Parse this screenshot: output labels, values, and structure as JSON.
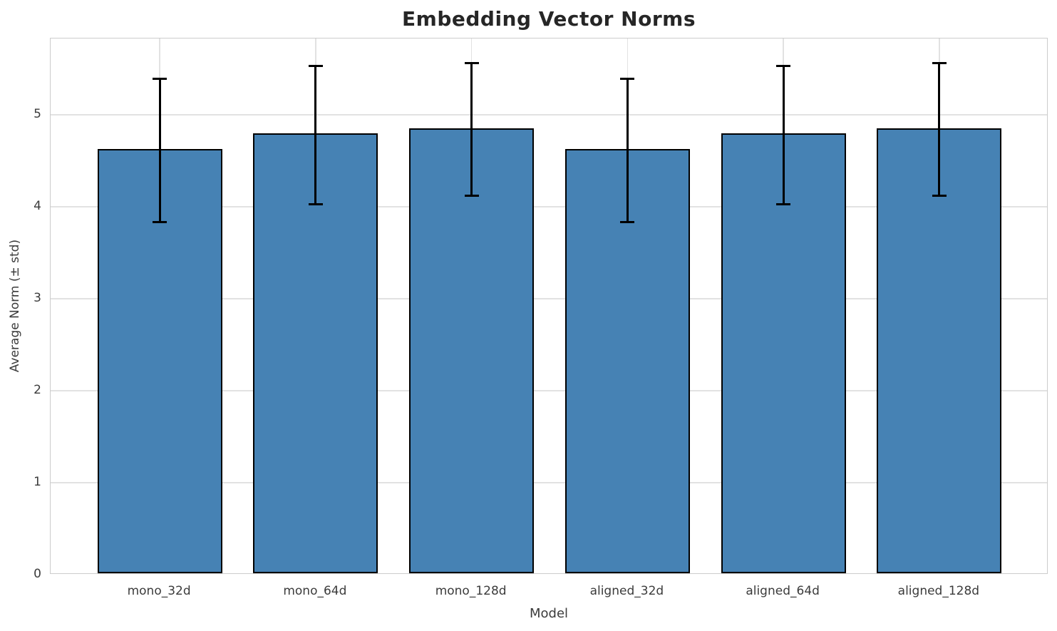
{
  "figure": {
    "title": "Embedding Vector Norms",
    "xlabel": "Model",
    "ylabel": "Average Norm (± std)"
  },
  "chart_data": {
    "type": "bar",
    "title": "Embedding Vector Norms",
    "xlabel": "Model",
    "ylabel": "Average Norm (± std)",
    "categories": [
      "mono_32d",
      "mono_64d",
      "mono_128d",
      "aligned_32d",
      "aligned_64d",
      "aligned_128d"
    ],
    "series": [
      {
        "name": "Average Norm",
        "values": [
          4.61,
          4.78,
          4.84,
          4.61,
          4.78,
          4.84
        ]
      }
    ],
    "error_std": [
      0.78,
      0.75,
      0.72,
      0.78,
      0.75,
      0.72
    ],
    "yticks": [
      0,
      1,
      2,
      3,
      4,
      5
    ],
    "ylim": [
      0,
      5.83
    ],
    "xlim_pad": 0.7,
    "bar_width_fraction": 0.8,
    "grid": true,
    "legend_position": "none",
    "colors": {
      "bar_fill": "#4682b4",
      "bar_edge": "#000000",
      "error_bar": "#000000",
      "grid_line": "#e2e2e2",
      "spine": "#cccccc",
      "title_text": "#262626",
      "axis_text": "#3b3b3b"
    }
  }
}
